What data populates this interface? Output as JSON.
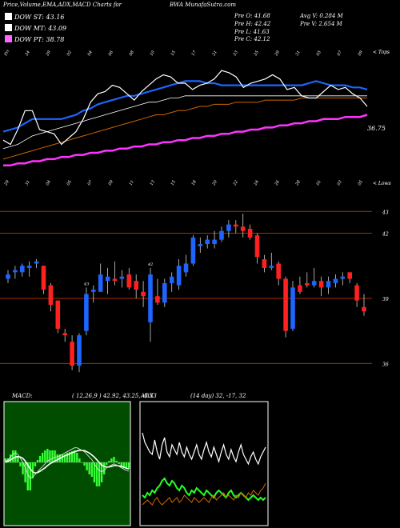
{
  "header": {
    "title": "Price,Volume,EMA,ADX,MACD Charts for",
    "symbol": "BWA",
    "watermark": "MunafaSutra.com",
    "pr_o": "Pre  O: 41.68",
    "pr_h": "Pre  H: 42.42",
    "pr_l": "Pre  L: 41.63",
    "pr_c": "Pre  C: 42.12",
    "avg_v": "Avg V: 0.284  M",
    "pre_v": "Pre  V: 2.654  M"
  },
  "legend": [
    {
      "label": "DOW ST: 43.16",
      "color": "#ffffff"
    },
    {
      "label": "DOW MT: 43.09",
      "color": "#ffffff"
    },
    {
      "label": "DOW PT: 38.78",
      "color": "#ff66ff"
    }
  ],
  "ema_panel": {
    "top_dates": [
      "Fri",
      "24",
      "29",
      "02",
      "04",
      "06",
      "08",
      "10",
      "15",
      "17",
      "21",
      "23",
      "25",
      "29",
      "31",
      "05",
      "07",
      "09"
    ],
    "bottom_dates": [
      "29",
      "31",
      "04",
      "05",
      "07",
      "09",
      "11",
      "13",
      "15",
      "18",
      "20",
      "22",
      "24",
      "26",
      "28",
      "01",
      "03",
      "05"
    ],
    "right_label_top": "< Tops",
    "right_label_bottom": "< Lows",
    "last_label": "36.75",
    "series": {
      "price": [
        40.2,
        40.0,
        40.7,
        41.6,
        41.6,
        40.7,
        40.6,
        40.5,
        40.0,
        40.3,
        40.6,
        41.2,
        42.0,
        42.4,
        42.5,
        42.8,
        42.7,
        42.4,
        42.1,
        42.5,
        42.8,
        43.1,
        43.3,
        43.2,
        42.9,
        42.9,
        42.6,
        42.8,
        42.9,
        43.1,
        43.5,
        43.4,
        43.2,
        42.7,
        42.9,
        43.0,
        43.1,
        43.3,
        43.1,
        42.6,
        42.7,
        42.3,
        42.2,
        42.2,
        42.5,
        42.8,
        42.6,
        42.7,
        42.4,
        42.2,
        41.8
      ],
      "ema_fast": [
        40.6,
        40.7,
        40.8,
        41.0,
        41.2,
        41.2,
        41.2,
        41.2,
        41.2,
        41.3,
        41.4,
        41.6,
        41.7,
        41.9,
        42.0,
        42.1,
        42.2,
        42.3,
        42.3,
        42.4,
        42.5,
        42.6,
        42.7,
        42.8,
        42.9,
        43.0,
        43.0,
        43.0,
        42.9,
        42.9,
        42.8,
        42.8,
        42.8,
        42.8,
        42.8,
        42.8,
        42.8,
        42.8,
        42.8,
        42.8,
        42.8,
        42.8,
        42.9,
        43.0,
        42.9,
        42.8,
        42.8,
        42.8,
        42.7,
        42.7,
        42.6
      ],
      "ema_white": [
        39.8,
        39.9,
        40.0,
        40.2,
        40.4,
        40.5,
        40.6,
        40.7,
        40.8,
        40.9,
        41.0,
        41.1,
        41.2,
        41.3,
        41.4,
        41.5,
        41.6,
        41.7,
        41.8,
        41.9,
        42.0,
        42.0,
        42.1,
        42.2,
        42.2,
        42.3,
        42.3,
        42.3,
        42.3,
        42.3,
        42.3,
        42.3,
        42.3,
        42.3,
        42.3,
        42.3,
        42.3,
        42.3,
        42.3,
        42.3,
        42.3,
        42.3,
        42.3,
        42.3,
        42.3,
        42.3,
        42.3,
        42.3,
        42.3,
        42.3,
        42.3
      ],
      "ema_brown": [
        39.3,
        39.4,
        39.5,
        39.6,
        39.7,
        39.8,
        39.9,
        40.0,
        40.1,
        40.2,
        40.3,
        40.4,
        40.5,
        40.6,
        40.7,
        40.8,
        40.9,
        41.0,
        41.1,
        41.2,
        41.3,
        41.4,
        41.4,
        41.5,
        41.6,
        41.6,
        41.7,
        41.8,
        41.8,
        41.9,
        41.9,
        41.9,
        42.0,
        42.0,
        42.0,
        42.0,
        42.1,
        42.1,
        42.1,
        42.1,
        42.1,
        42.2,
        42.2,
        42.2,
        42.2,
        42.2,
        42.2,
        42.2,
        42.2,
        42.2,
        42.2
      ],
      "ema_magenta": [
        39.0,
        39.0,
        39.1,
        39.1,
        39.2,
        39.2,
        39.3,
        39.3,
        39.4,
        39.4,
        39.5,
        39.5,
        39.6,
        39.6,
        39.7,
        39.7,
        39.8,
        39.8,
        39.9,
        39.9,
        40.0,
        40.0,
        40.1,
        40.1,
        40.2,
        40.2,
        40.3,
        40.3,
        40.4,
        40.4,
        40.5,
        40.5,
        40.6,
        40.6,
        40.7,
        40.7,
        40.8,
        40.8,
        40.9,
        40.9,
        41.0,
        41.0,
        41.1,
        41.1,
        41.2,
        41.2,
        41.2,
        41.3,
        41.3,
        41.3,
        41.4
      ]
    },
    "ylim": [
      38.5,
      44.0
    ]
  },
  "price_panel": {
    "levels": [
      {
        "value": 43,
        "label": "43"
      },
      {
        "value": 42,
        "label": "42"
      },
      {
        "value": 39,
        "label": "39"
      },
      {
        "value": 36,
        "label": "36"
      }
    ],
    "ylim": [
      35.5,
      43.6
    ],
    "bar_labels": [
      {
        "text": "43",
        "candle": 11
      },
      {
        "text": "42",
        "candle": 20
      }
    ]
  },
  "chart_data": {
    "type": "candlestick",
    "candles": [
      {
        "o": 39.9,
        "h": 40.3,
        "l": 39.7,
        "c": 40.1
      },
      {
        "o": 40.2,
        "h": 40.5,
        "l": 39.9,
        "c": 40.3
      },
      {
        "o": 40.2,
        "h": 40.6,
        "l": 40.0,
        "c": 40.5
      },
      {
        "o": 40.4,
        "h": 40.7,
        "l": 40.0,
        "c": 40.5
      },
      {
        "o": 40.6,
        "h": 40.8,
        "l": 40.4,
        "c": 40.7
      },
      {
        "o": 40.5,
        "h": 40.5,
        "l": 39.2,
        "c": 39.4
      },
      {
        "o": 39.6,
        "h": 39.7,
        "l": 38.4,
        "c": 38.7
      },
      {
        "o": 38.9,
        "h": 38.9,
        "l": 37.4,
        "c": 37.6
      },
      {
        "o": 37.4,
        "h": 37.6,
        "l": 37.0,
        "c": 37.3
      },
      {
        "o": 37.0,
        "h": 37.3,
        "l": 35.7,
        "c": 35.9
      },
      {
        "o": 35.9,
        "h": 37.4,
        "l": 35.6,
        "c": 37.3
      },
      {
        "o": 37.5,
        "h": 39.5,
        "l": 37.3,
        "c": 39.2
      },
      {
        "o": 39.3,
        "h": 39.6,
        "l": 38.8,
        "c": 39.4
      },
      {
        "o": 39.3,
        "h": 40.6,
        "l": 39.3,
        "c": 40.1
      },
      {
        "o": 39.8,
        "h": 40.4,
        "l": 39.2,
        "c": 40.0
      },
      {
        "o": 39.9,
        "h": 40.7,
        "l": 39.6,
        "c": 39.8
      },
      {
        "o": 39.9,
        "h": 40.3,
        "l": 39.5,
        "c": 40.0
      },
      {
        "o": 40.1,
        "h": 40.4,
        "l": 39.4,
        "c": 39.5
      },
      {
        "o": 39.8,
        "h": 40.1,
        "l": 39.0,
        "c": 39.4
      },
      {
        "o": 39.3,
        "h": 39.8,
        "l": 38.6,
        "c": 39.1
      },
      {
        "o": 37.9,
        "h": 40.4,
        "l": 37.0,
        "c": 40.1
      },
      {
        "o": 39.1,
        "h": 39.9,
        "l": 38.7,
        "c": 38.8
      },
      {
        "o": 38.8,
        "h": 39.9,
        "l": 38.6,
        "c": 39.7
      },
      {
        "o": 39.7,
        "h": 40.2,
        "l": 39.3,
        "c": 40.0
      },
      {
        "o": 39.6,
        "h": 40.8,
        "l": 39.4,
        "c": 40.5
      },
      {
        "o": 40.2,
        "h": 41.0,
        "l": 40.0,
        "c": 40.6
      },
      {
        "o": 40.6,
        "h": 41.9,
        "l": 40.5,
        "c": 41.8
      },
      {
        "o": 41.4,
        "h": 41.8,
        "l": 41.1,
        "c": 41.5
      },
      {
        "o": 41.5,
        "h": 41.9,
        "l": 41.3,
        "c": 41.7
      },
      {
        "o": 41.5,
        "h": 42.1,
        "l": 41.3,
        "c": 41.7
      },
      {
        "o": 41.7,
        "h": 42.3,
        "l": 41.6,
        "c": 42.1
      },
      {
        "o": 42.1,
        "h": 42.6,
        "l": 41.8,
        "c": 42.4
      },
      {
        "o": 42.4,
        "h": 42.6,
        "l": 42.0,
        "c": 42.3
      },
      {
        "o": 42.3,
        "h": 42.9,
        "l": 41.8,
        "c": 42.1
      },
      {
        "o": 42.2,
        "h": 42.4,
        "l": 41.7,
        "c": 41.8
      },
      {
        "o": 41.9,
        "h": 42.0,
        "l": 40.6,
        "c": 40.9
      },
      {
        "o": 40.8,
        "h": 41.0,
        "l": 40.2,
        "c": 40.4
      },
      {
        "o": 40.4,
        "h": 41.1,
        "l": 40.3,
        "c": 40.5
      },
      {
        "o": 40.6,
        "h": 40.7,
        "l": 39.6,
        "c": 39.9
      },
      {
        "o": 39.9,
        "h": 40.0,
        "l": 37.2,
        "c": 37.5
      },
      {
        "o": 37.6,
        "h": 39.8,
        "l": 37.5,
        "c": 39.5
      },
      {
        "o": 39.6,
        "h": 40.0,
        "l": 39.2,
        "c": 39.3
      },
      {
        "o": 39.7,
        "h": 40.2,
        "l": 39.5,
        "c": 39.6
      },
      {
        "o": 39.6,
        "h": 40.4,
        "l": 39.5,
        "c": 39.8
      },
      {
        "o": 39.8,
        "h": 40.0,
        "l": 39.1,
        "c": 39.5
      },
      {
        "o": 39.5,
        "h": 40.0,
        "l": 39.2,
        "c": 39.8
      },
      {
        "o": 39.7,
        "h": 40.1,
        "l": 39.5,
        "c": 39.9
      },
      {
        "o": 39.9,
        "h": 40.2,
        "l": 39.6,
        "c": 40.0
      },
      {
        "o": 40.2,
        "h": 40.2,
        "l": 39.7,
        "c": 39.9
      },
      {
        "o": 39.6,
        "h": 39.7,
        "l": 38.6,
        "c": 38.9
      },
      {
        "o": 38.6,
        "h": 39.2,
        "l": 38.2,
        "c": 38.4
      }
    ]
  },
  "macd": {
    "title": "MACD:",
    "params": "( 12,26,9 ) 42.92, 43.25, -0.33",
    "panel_bg": "#004d00",
    "macd_line": [
      0.05,
      0.1,
      0.2,
      0.3,
      0.35,
      0.3,
      0.15,
      0.0,
      -0.2,
      -0.45,
      -0.6,
      -0.55,
      -0.45,
      -0.35,
      -0.25,
      -0.15,
      -0.05,
      0.05,
      0.1,
      0.15,
      0.2,
      0.2,
      0.25,
      0.3,
      0.35,
      0.4,
      0.45,
      0.5,
      0.55,
      0.55,
      0.5,
      0.45,
      0.4,
      0.3,
      0.2,
      0.1,
      -0.05,
      -0.2,
      -0.3,
      -0.35,
      -0.3,
      -0.2,
      -0.15,
      -0.1,
      -0.05,
      -0.1,
      -0.15,
      -0.2,
      -0.25,
      -0.3,
      -0.33
    ],
    "signal_line": [
      0.0,
      0.05,
      0.1,
      0.15,
      0.2,
      0.22,
      0.2,
      0.15,
      0.05,
      -0.1,
      -0.25,
      -0.35,
      -0.4,
      -0.38,
      -0.33,
      -0.27,
      -0.2,
      -0.12,
      -0.05,
      0.0,
      0.05,
      0.1,
      0.15,
      0.2,
      0.25,
      0.28,
      0.32,
      0.36,
      0.4,
      0.43,
      0.45,
      0.45,
      0.44,
      0.4,
      0.35,
      0.28,
      0.2,
      0.1,
      0.0,
      -0.1,
      -0.15,
      -0.17,
      -0.17,
      -0.15,
      -0.12,
      -0.12,
      -0.13,
      -0.15,
      -0.18,
      -0.22,
      -0.25
    ],
    "ylim": [
      -1.2,
      1.2
    ]
  },
  "adx": {
    "title": "ADX",
    "params": "(14  day) 32, -17,  32",
    "adx_line": [
      38,
      34,
      32,
      30,
      29,
      35,
      30,
      27,
      33,
      36,
      30,
      28,
      33,
      31,
      29,
      34,
      30,
      28,
      32,
      29,
      27,
      30,
      33,
      29,
      27,
      31,
      34,
      30,
      28,
      32,
      29,
      26,
      30,
      33,
      29,
      27,
      31,
      28,
      26,
      30,
      33,
      29,
      27,
      25,
      28,
      30,
      27,
      25,
      28,
      30,
      32
    ],
    "plus_di": [
      12,
      11,
      13,
      12,
      14,
      13,
      15,
      16,
      18,
      19,
      17,
      16,
      18,
      17,
      15,
      14,
      16,
      15,
      13,
      12,
      14,
      13,
      15,
      14,
      13,
      12,
      14,
      13,
      12,
      11,
      13,
      14,
      13,
      12,
      11,
      13,
      14,
      12,
      11,
      12,
      13,
      12,
      11,
      10,
      11,
      12,
      11,
      10,
      11,
      10,
      11
    ],
    "minus_di": [
      8,
      9,
      10,
      9,
      8,
      10,
      11,
      9,
      8,
      9,
      10,
      11,
      9,
      10,
      11,
      9,
      10,
      12,
      11,
      10,
      9,
      11,
      10,
      9,
      10,
      11,
      10,
      9,
      11,
      12,
      10,
      11,
      12,
      13,
      11,
      12,
      11,
      10,
      12,
      11,
      13,
      12,
      11,
      13,
      12,
      14,
      13,
      12,
      14,
      15,
      17
    ],
    "ylim": [
      0,
      50
    ]
  }
}
